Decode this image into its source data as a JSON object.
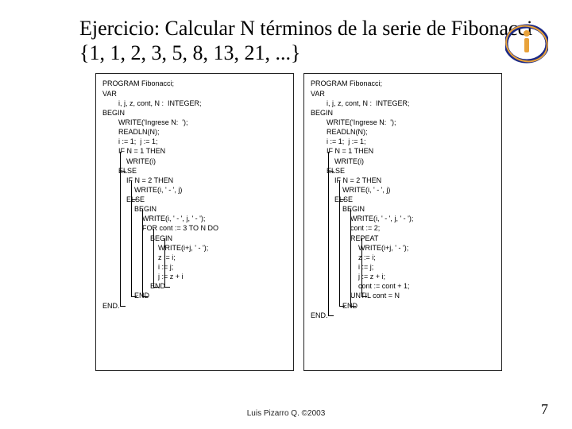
{
  "title": "Ejercicio:   Calcular N términos de la serie de Fibonacci {1, 1, 2, 3, 5, 8, 13, 21, ...}",
  "footer": "Luis Pizarro Q. ©2003",
  "page_number": "7",
  "logo_colors": {
    "outer": "#1c2a86",
    "inner": "#e8a23a"
  },
  "left_code": [
    "PROGRAM Fibonacci;",
    "VAR",
    "        i, j, z, cont, N :  INTEGER;",
    "BEGIN",
    "        WRITE('Ingrese N:  ');",
    "        READLN(N);",
    "        i := 1;  j := 1;",
    "        IF N = 1 THEN",
    "            WRITE(i)",
    "        ELSE",
    "            IF N = 2 THEN",
    "                WRITE(i, ' - ', j)",
    "            ELSE",
    "                BEGIN",
    "                    WRITE(i, ' - ', j, ' - ');",
    "                    FOR cont := 3 TO N DO",
    "                        BEGIN",
    "                            WRITE(i+j, ' - ');",
    "                            z := i;",
    "                            i := j;",
    "                            j := z + i",
    "                        END",
    "                END",
    "END."
  ],
  "right_code": [
    "PROGRAM Fibonacci;",
    "VAR",
    "        i, j, z, cont, N :  INTEGER;",
    "BEGIN",
    "        WRITE('Ingrese N:  ');",
    "        READLN(N);",
    "        i := 1;  j := 1;",
    "        IF N = 1 THEN",
    "            WRITE(i)",
    "        ELSE",
    "            IF N = 2 THEN",
    "                WRITE(i, ' - ', j)",
    "            ELSE",
    "                BEGIN",
    "                    WRITE(i, ' - ', j, ' - ');",
    "                    cont := 2;",
    "                    REPEAT",
    "                        WRITE(i+j, ' - ');",
    "                        z := i;",
    "                        i := j;",
    "                        j := z + i;",
    "                        cont := cont + 1;",
    "                    UNTIL cont = N",
    "                END",
    "END."
  ]
}
